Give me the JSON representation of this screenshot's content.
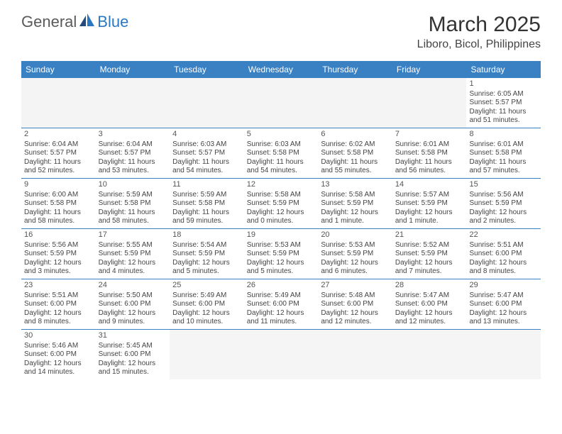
{
  "logo": {
    "text1": "General",
    "text2": "Blue"
  },
  "title": "March 2025",
  "location": "Liboro, Bicol, Philippines",
  "colors": {
    "header_bg": "#3a81c4",
    "header_text": "#ffffff",
    "row_border": "#3a81c4",
    "logo_gray": "#5a5a5a",
    "logo_blue": "#2b78c2"
  },
  "weekdays": [
    "Sunday",
    "Monday",
    "Tuesday",
    "Wednesday",
    "Thursday",
    "Friday",
    "Saturday"
  ],
  "weeks": [
    [
      {
        "empty": true
      },
      {
        "empty": true
      },
      {
        "empty": true
      },
      {
        "empty": true
      },
      {
        "empty": true
      },
      {
        "empty": true
      },
      {
        "n": "1",
        "sunrise": "Sunrise: 6:05 AM",
        "sunset": "Sunset: 5:57 PM",
        "day1": "Daylight: 11 hours",
        "day2": "and 51 minutes."
      }
    ],
    [
      {
        "n": "2",
        "sunrise": "Sunrise: 6:04 AM",
        "sunset": "Sunset: 5:57 PM",
        "day1": "Daylight: 11 hours",
        "day2": "and 52 minutes."
      },
      {
        "n": "3",
        "sunrise": "Sunrise: 6:04 AM",
        "sunset": "Sunset: 5:57 PM",
        "day1": "Daylight: 11 hours",
        "day2": "and 53 minutes."
      },
      {
        "n": "4",
        "sunrise": "Sunrise: 6:03 AM",
        "sunset": "Sunset: 5:57 PM",
        "day1": "Daylight: 11 hours",
        "day2": "and 54 minutes."
      },
      {
        "n": "5",
        "sunrise": "Sunrise: 6:03 AM",
        "sunset": "Sunset: 5:58 PM",
        "day1": "Daylight: 11 hours",
        "day2": "and 54 minutes."
      },
      {
        "n": "6",
        "sunrise": "Sunrise: 6:02 AM",
        "sunset": "Sunset: 5:58 PM",
        "day1": "Daylight: 11 hours",
        "day2": "and 55 minutes."
      },
      {
        "n": "7",
        "sunrise": "Sunrise: 6:01 AM",
        "sunset": "Sunset: 5:58 PM",
        "day1": "Daylight: 11 hours",
        "day2": "and 56 minutes."
      },
      {
        "n": "8",
        "sunrise": "Sunrise: 6:01 AM",
        "sunset": "Sunset: 5:58 PM",
        "day1": "Daylight: 11 hours",
        "day2": "and 57 minutes."
      }
    ],
    [
      {
        "n": "9",
        "sunrise": "Sunrise: 6:00 AM",
        "sunset": "Sunset: 5:58 PM",
        "day1": "Daylight: 11 hours",
        "day2": "and 58 minutes."
      },
      {
        "n": "10",
        "sunrise": "Sunrise: 5:59 AM",
        "sunset": "Sunset: 5:58 PM",
        "day1": "Daylight: 11 hours",
        "day2": "and 58 minutes."
      },
      {
        "n": "11",
        "sunrise": "Sunrise: 5:59 AM",
        "sunset": "Sunset: 5:58 PM",
        "day1": "Daylight: 11 hours",
        "day2": "and 59 minutes."
      },
      {
        "n": "12",
        "sunrise": "Sunrise: 5:58 AM",
        "sunset": "Sunset: 5:59 PM",
        "day1": "Daylight: 12 hours",
        "day2": "and 0 minutes."
      },
      {
        "n": "13",
        "sunrise": "Sunrise: 5:58 AM",
        "sunset": "Sunset: 5:59 PM",
        "day1": "Daylight: 12 hours",
        "day2": "and 1 minute."
      },
      {
        "n": "14",
        "sunrise": "Sunrise: 5:57 AM",
        "sunset": "Sunset: 5:59 PM",
        "day1": "Daylight: 12 hours",
        "day2": "and 1 minute."
      },
      {
        "n": "15",
        "sunrise": "Sunrise: 5:56 AM",
        "sunset": "Sunset: 5:59 PM",
        "day1": "Daylight: 12 hours",
        "day2": "and 2 minutes."
      }
    ],
    [
      {
        "n": "16",
        "sunrise": "Sunrise: 5:56 AM",
        "sunset": "Sunset: 5:59 PM",
        "day1": "Daylight: 12 hours",
        "day2": "and 3 minutes."
      },
      {
        "n": "17",
        "sunrise": "Sunrise: 5:55 AM",
        "sunset": "Sunset: 5:59 PM",
        "day1": "Daylight: 12 hours",
        "day2": "and 4 minutes."
      },
      {
        "n": "18",
        "sunrise": "Sunrise: 5:54 AM",
        "sunset": "Sunset: 5:59 PM",
        "day1": "Daylight: 12 hours",
        "day2": "and 5 minutes."
      },
      {
        "n": "19",
        "sunrise": "Sunrise: 5:53 AM",
        "sunset": "Sunset: 5:59 PM",
        "day1": "Daylight: 12 hours",
        "day2": "and 5 minutes."
      },
      {
        "n": "20",
        "sunrise": "Sunrise: 5:53 AM",
        "sunset": "Sunset: 5:59 PM",
        "day1": "Daylight: 12 hours",
        "day2": "and 6 minutes."
      },
      {
        "n": "21",
        "sunrise": "Sunrise: 5:52 AM",
        "sunset": "Sunset: 5:59 PM",
        "day1": "Daylight: 12 hours",
        "day2": "and 7 minutes."
      },
      {
        "n": "22",
        "sunrise": "Sunrise: 5:51 AM",
        "sunset": "Sunset: 6:00 PM",
        "day1": "Daylight: 12 hours",
        "day2": "and 8 minutes."
      }
    ],
    [
      {
        "n": "23",
        "sunrise": "Sunrise: 5:51 AM",
        "sunset": "Sunset: 6:00 PM",
        "day1": "Daylight: 12 hours",
        "day2": "and 8 minutes."
      },
      {
        "n": "24",
        "sunrise": "Sunrise: 5:50 AM",
        "sunset": "Sunset: 6:00 PM",
        "day1": "Daylight: 12 hours",
        "day2": "and 9 minutes."
      },
      {
        "n": "25",
        "sunrise": "Sunrise: 5:49 AM",
        "sunset": "Sunset: 6:00 PM",
        "day1": "Daylight: 12 hours",
        "day2": "and 10 minutes."
      },
      {
        "n": "26",
        "sunrise": "Sunrise: 5:49 AM",
        "sunset": "Sunset: 6:00 PM",
        "day1": "Daylight: 12 hours",
        "day2": "and 11 minutes."
      },
      {
        "n": "27",
        "sunrise": "Sunrise: 5:48 AM",
        "sunset": "Sunset: 6:00 PM",
        "day1": "Daylight: 12 hours",
        "day2": "and 12 minutes."
      },
      {
        "n": "28",
        "sunrise": "Sunrise: 5:47 AM",
        "sunset": "Sunset: 6:00 PM",
        "day1": "Daylight: 12 hours",
        "day2": "and 12 minutes."
      },
      {
        "n": "29",
        "sunrise": "Sunrise: 5:47 AM",
        "sunset": "Sunset: 6:00 PM",
        "day1": "Daylight: 12 hours",
        "day2": "and 13 minutes."
      }
    ],
    [
      {
        "n": "30",
        "sunrise": "Sunrise: 5:46 AM",
        "sunset": "Sunset: 6:00 PM",
        "day1": "Daylight: 12 hours",
        "day2": "and 14 minutes."
      },
      {
        "n": "31",
        "sunrise": "Sunrise: 5:45 AM",
        "sunset": "Sunset: 6:00 PM",
        "day1": "Daylight: 12 hours",
        "day2": "and 15 minutes."
      },
      {
        "empty": true
      },
      {
        "empty": true
      },
      {
        "empty": true
      },
      {
        "empty": true
      },
      {
        "empty": true
      }
    ]
  ]
}
